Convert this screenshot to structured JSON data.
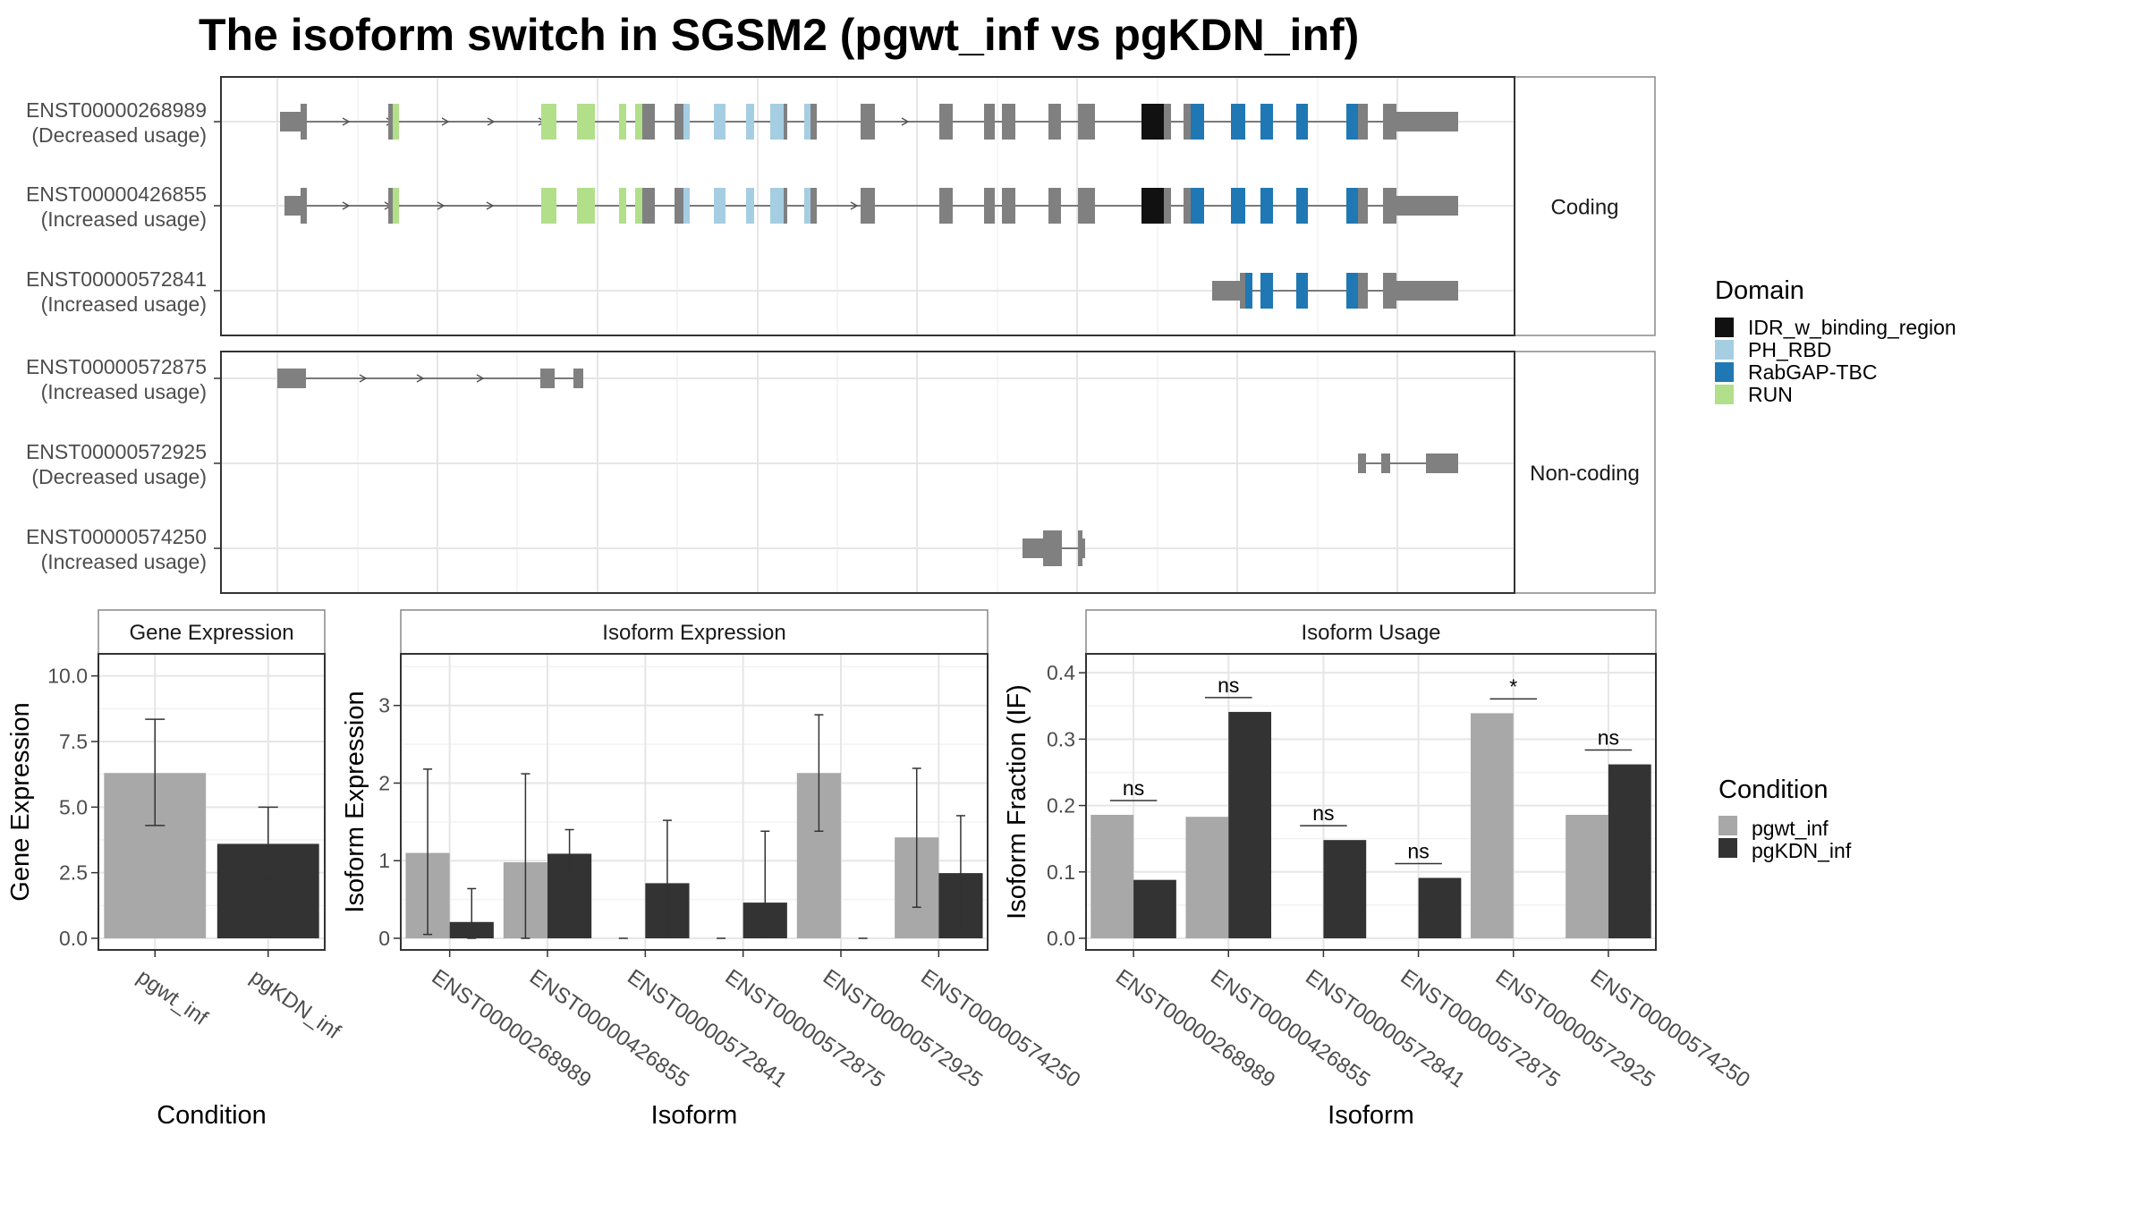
{
  "title": "The isoform switch in SGSM2 (pgwt_inf vs pgKDN_inf)",
  "domain_legend": {
    "title": "Domain",
    "items": [
      {
        "label": "IDR_w_binding_region",
        "color": "#111111"
      },
      {
        "label": "PH_RBD",
        "color": "#a6cee3"
      },
      {
        "label": "RabGAP-TBC",
        "color": "#1f78b4"
      },
      {
        "label": "RUN",
        "color": "#b2df8a"
      }
    ]
  },
  "condition_legend": {
    "title": "Condition",
    "items": [
      {
        "label": "pgwt_inf",
        "color": "#a8a8a8"
      },
      {
        "label": "pgKDN_inf",
        "color": "#333333"
      }
    ]
  },
  "transcript_panels": [
    {
      "label": "Coding",
      "transcripts": [
        {
          "id": "ENST00000268989",
          "usage": "(Decreased usage)"
        },
        {
          "id": "ENST00000426855",
          "usage": "(Increased usage)"
        },
        {
          "id": "ENST00000572841",
          "usage": "(Increased usage)"
        }
      ]
    },
    {
      "label": "Non-coding",
      "transcripts": [
        {
          "id": "ENST00000572875",
          "usage": "(Increased usage)"
        },
        {
          "id": "ENST00000572925",
          "usage": "(Decreased usage)"
        },
        {
          "id": "ENST00000574250",
          "usage": "(Increased usage)"
        }
      ]
    }
  ],
  "chart_data": [
    {
      "type": "bar",
      "title": "Gene Expression",
      "xlabel": "Condition",
      "ylabel": "Gene Expression",
      "ylim": [
        0,
        10.5
      ],
      "yticks": [
        "0.0",
        "2.5",
        "5.0",
        "7.5",
        "10.0"
      ],
      "categories": [
        "pgwt_inf",
        "pgKDN_inf"
      ],
      "values": [
        6.3,
        3.6
      ],
      "error_low": [
        4.3,
        2.25
      ],
      "error_high": [
        8.35,
        5.0
      ]
    },
    {
      "type": "bar",
      "title": "Isoform Expression",
      "xlabel": "Isoform",
      "ylabel": "Isoform Expression",
      "ylim": [
        0,
        3.55
      ],
      "yticks": [
        "0",
        "1",
        "2",
        "3"
      ],
      "categories": [
        "ENST00000268989",
        "ENST00000426855",
        "ENST00000572841",
        "ENST00000572875",
        "ENST00000572925",
        "ENST00000574250"
      ],
      "series": [
        {
          "name": "pgwt_inf",
          "values": [
            1.1,
            0.98,
            0,
            0,
            2.13,
            1.3
          ],
          "error_low": [
            0.05,
            0.0,
            0,
            0,
            1.38,
            0.4
          ],
          "error_high": [
            2.18,
            2.12,
            0,
            0,
            2.88,
            2.19
          ]
        },
        {
          "name": "pgKDN_inf",
          "values": [
            0.21,
            1.09,
            0.71,
            0.46,
            0,
            0.84
          ],
          "error_low": [
            0.0,
            0.78,
            0.02,
            0.01,
            0,
            0.1
          ],
          "error_high": [
            0.64,
            1.4,
            1.52,
            1.38,
            0,
            1.58
          ]
        }
      ]
    },
    {
      "type": "bar",
      "title": "Isoform Usage",
      "xlabel": "Isoform",
      "ylabel": "Isoform Fraction (IF)",
      "ylim": [
        0,
        0.415
      ],
      "yticks": [
        "0.0",
        "0.1",
        "0.2",
        "0.3",
        "0.4"
      ],
      "categories": [
        "ENST00000268989",
        "ENST00000426855",
        "ENST00000572841",
        "ENST00000572875",
        "ENST00000572925",
        "ENST00000574250"
      ],
      "series": [
        {
          "name": "pgwt_inf",
          "values": [
            0.186,
            0.183,
            0,
            0,
            0.339,
            0.186
          ]
        },
        {
          "name": "pgKDN_inf",
          "values": [
            0.088,
            0.341,
            0.148,
            0.091,
            0,
            0.262
          ]
        }
      ],
      "significance": [
        "ns",
        "ns",
        "ns",
        "ns",
        "*",
        "ns"
      ]
    }
  ]
}
